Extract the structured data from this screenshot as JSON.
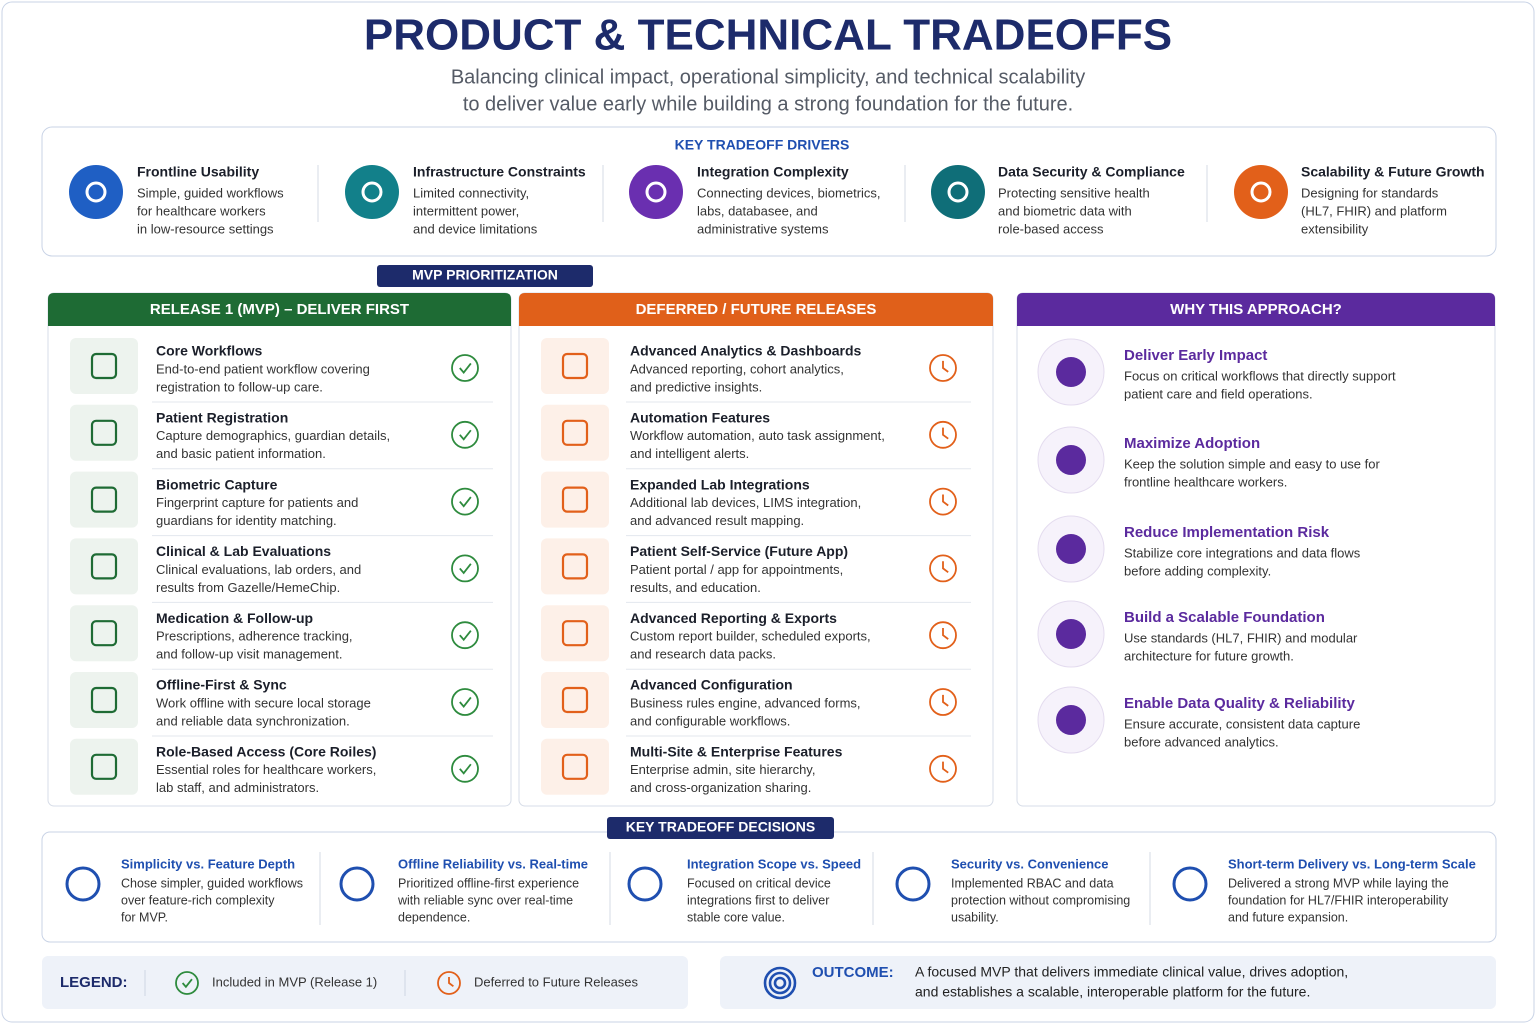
{
  "header": {
    "title": "PRODUCT & TECHNICAL TRADEOFFS",
    "subtitle": [
      "Balancing clinical impact, operational simplicity, and technical scalability",
      "to deliver value early while building a strong foundation for the future."
    ]
  },
  "drivers": {
    "heading": "KEY TRADEOFF DRIVERS",
    "items": [
      {
        "title": "Frontline Usability",
        "desc": [
          "Simple, guided workflows",
          "for healthcare workers",
          "in low-resource settings"
        ]
      },
      {
        "title": "Infrastructure Constraints",
        "desc": [
          "Limited connectivity,",
          "intermittent power,",
          "and device limitations"
        ]
      },
      {
        "title": "Integration Complexity",
        "desc": [
          "Connecting devices, biometrics,",
          "labs, databasee, and",
          "administrative systems"
        ]
      },
      {
        "title": "Data Security & Compliance",
        "desc": [
          "Protecting sensitive health",
          "and biometric data with",
          "role-based access"
        ]
      },
      {
        "title": "Scalability & Future Growth",
        "desc": [
          "Designing for standards",
          "(HL7, FHIR) and platform",
          "extensibility"
        ]
      }
    ]
  },
  "mvp_label": "MVP PRIORITIZATION",
  "release1": {
    "heading": "RELEASE 1 (MVP) – DELIVER FIRST",
    "items": [
      {
        "title": "Core Workflows",
        "desc": [
          "End-to-end patient workflow covering",
          "registration to follow-up care."
        ]
      },
      {
        "title": "Patient Registration",
        "desc": [
          "Capture demographics, guardian details,",
          "and basic patient information."
        ]
      },
      {
        "title": "Biometric Capture",
        "desc": [
          "Fingerprint capture for patients and",
          "guardians for identity matching."
        ]
      },
      {
        "title": "Clinical & Lab Evaluations",
        "desc": [
          "Clinical evaluations, lab orders, and",
          "results from Gazelle/HemeChip."
        ]
      },
      {
        "title": "Medication & Follow-up",
        "desc": [
          "Prescriptions, adherence tracking,",
          "and follow-up visit management."
        ]
      },
      {
        "title": "Offline-First & Sync",
        "desc": [
          "Work offline with secure local storage",
          "and reliable data synchronization."
        ]
      },
      {
        "title": "Role-Based Access (Core Roiles)",
        "desc": [
          "Essential roles for healthcare workers,",
          "lab staff, and administrators."
        ]
      }
    ]
  },
  "deferred": {
    "heading": "DEFERRED / FUTURE RELEASES",
    "items": [
      {
        "title": "Advanced Analytics & Dashboards",
        "desc": [
          "Advanced reporting, cohort analytics,",
          "and predictive insights."
        ]
      },
      {
        "title": "Automation Features",
        "desc": [
          "Workflow automation, auto task assignment,",
          "and intelligent alerts."
        ]
      },
      {
        "title": "Expanded Lab Integrations",
        "desc": [
          "Additional lab devices, LIMS integration,",
          "and advanced result mapping."
        ]
      },
      {
        "title": "Patient Self-Service (Future App)",
        "desc": [
          "Patient portal / app for appointments,",
          "results, and education."
        ]
      },
      {
        "title": "Advanced Reporting & Exports",
        "desc": [
          "Custom report builder, scheduled exports,",
          "and research data packs."
        ]
      },
      {
        "title": "Advanced Configuration",
        "desc": [
          "Business rules engine, advanced forms,",
          "and configurable workflows."
        ]
      },
      {
        "title": "Multi-Site & Enterprise Features",
        "desc": [
          "Enterprise admin, site hierarchy,",
          "and cross-organization sharing."
        ]
      }
    ]
  },
  "why": {
    "heading": "WHY THIS APPROACH?",
    "items": [
      {
        "title": "Deliver Early Impact",
        "desc": [
          "Focus on critical workflows that directly support",
          "patient care and field operations."
        ]
      },
      {
        "title": "Maximize Adoption",
        "desc": [
          "Keep the solution simple and easy to use for",
          "frontline healthcare workers."
        ]
      },
      {
        "title": "Reduce Implementation Risk",
        "desc": [
          "Stabilize core integrations and data flows",
          "before adding complexity."
        ]
      },
      {
        "title": "Build a Scalable Foundation",
        "desc": [
          "Use standards (HL7, FHIR) and modular",
          "architecture for future growth."
        ]
      },
      {
        "title": "Enable Data Quality & Reliability",
        "desc": [
          "Ensure accurate, consistent data capture",
          "before advanced analytics."
        ]
      }
    ]
  },
  "decisions": {
    "heading": "KEY TRADEOFF DECISIONS",
    "items": [
      {
        "title": "Simplicity vs. Feature Depth",
        "desc": [
          "Chose simpler, guided workflows",
          "over feature-rich complexity",
          "for MVP."
        ]
      },
      {
        "title": "Offline Reliability vs. Real-time",
        "desc": [
          "Prioritized offline-first experience",
          "with reliable sync over real-time",
          "dependence."
        ]
      },
      {
        "title": "Integration Scope vs. Speed",
        "desc": [
          "Focused on critical device",
          "integrations first to deliver",
          "stable core value."
        ]
      },
      {
        "title": "Security vs. Convenience",
        "desc": [
          "Implemented RBAC and data",
          "protection without compromising",
          "usability."
        ]
      },
      {
        "title": "Short-term Delivery vs. Long-term Scale",
        "desc": [
          "Delivered a strong MVP while laying the",
          "foundation for HL7/FHIR interoperability",
          "and future expansion."
        ]
      }
    ]
  },
  "legend": {
    "label": "LEGEND:",
    "included": "Included in MVP (Release 1)",
    "deferred": "Deferred to Future Releases"
  },
  "outcome": {
    "label": "OUTCOME:",
    "text": [
      "A focused MVP that delivers immediate clinical value, drives adoption,",
      "and establishes a scalable, interoperable platform for the future."
    ]
  }
}
